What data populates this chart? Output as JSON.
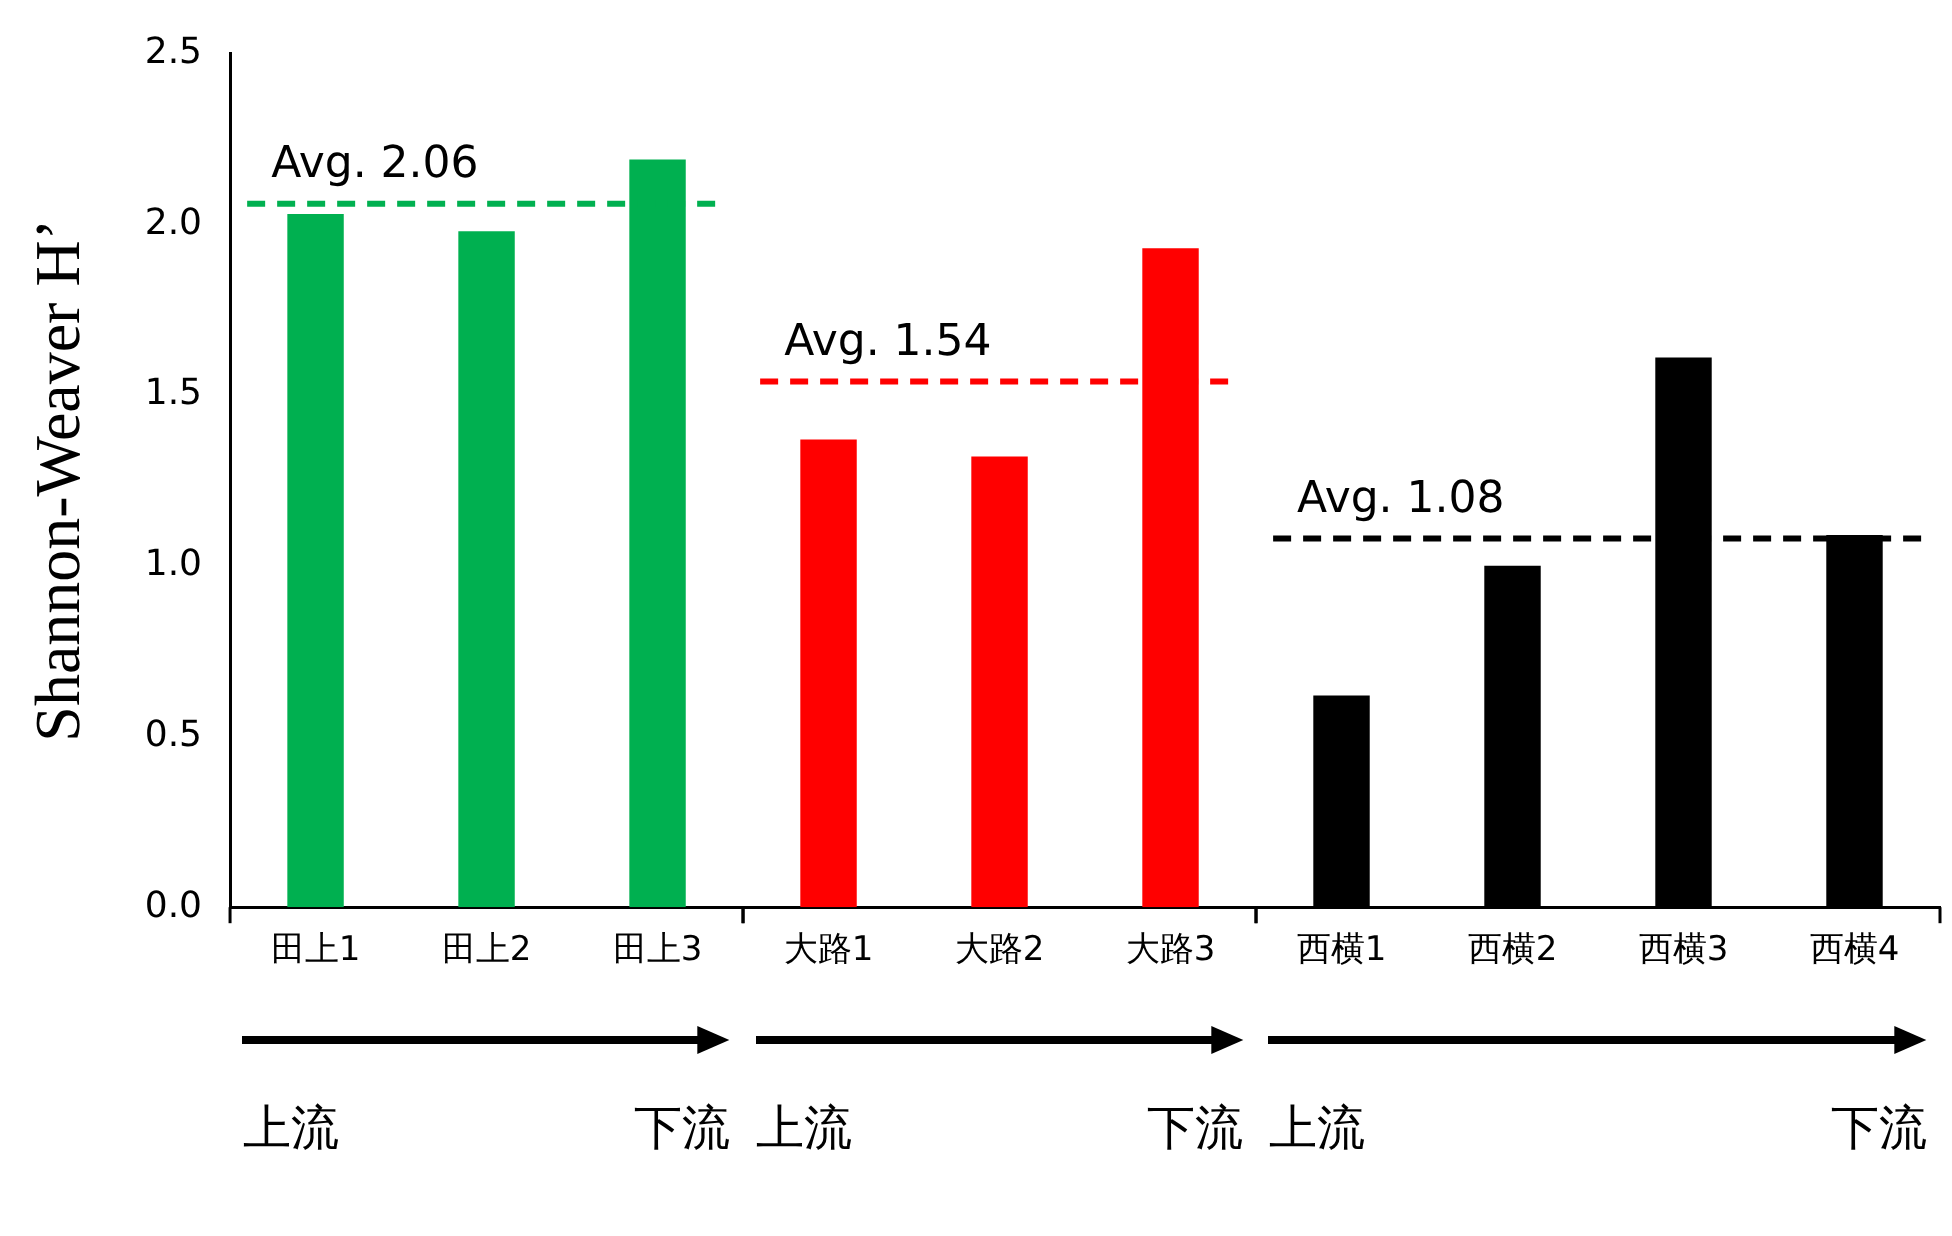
{
  "chart_data": {
    "type": "bar",
    "ylabel": "Shannon-Weaver H’",
    "categories": [
      "田上1",
      "田上2",
      "田上3",
      "大路1",
      "大路2",
      "大路3",
      "西横1",
      "西横2",
      "西横3",
      "西横4"
    ],
    "values": [
      2.03,
      1.98,
      2.19,
      1.37,
      1.32,
      1.93,
      0.62,
      1.0,
      1.61,
      1.09
    ],
    "colors": [
      "#00b050",
      "#00b050",
      "#00b050",
      "#ff0000",
      "#ff0000",
      "#ff0000",
      "#000000",
      "#000000",
      "#000000",
      "#000000"
    ],
    "ylim": [
      0,
      2.5
    ],
    "yticks": [
      {
        "value": 0,
        "label": "0.0"
      },
      0.5,
      {
        "value": 1,
        "label": "1.0"
      },
      1.5,
      {
        "value": 2,
        "label": "2.0"
      },
      2.5
    ],
    "ref_lines": [
      {
        "axis": "y",
        "value": 2.06,
        "label": "Avg. 2.06",
        "color": "#00b050",
        "line_style": "dashed"
      },
      {
        "axis": "y",
        "value": 1.54,
        "label": "Avg. 1.54",
        "color": "#ff0000",
        "line_style": "dashed"
      },
      {
        "axis": "y",
        "value": 1.08,
        "label": "Avg. 1.08",
        "color": "#000000",
        "line_style": "dashed"
      }
    ],
    "annotations": [
      "上流",
      "下流",
      "上流",
      "下流",
      "上流",
      "下流"
    ],
    "grid": false,
    "legend": false
  }
}
